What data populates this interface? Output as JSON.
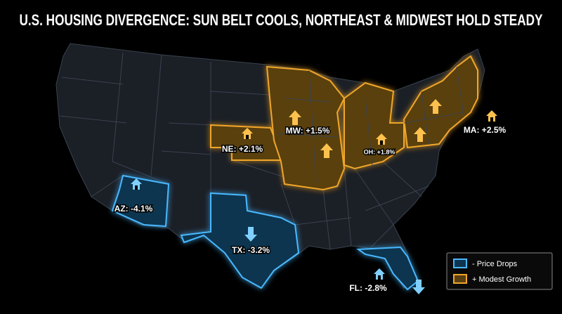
{
  "title": "U.S. HOUSING DIVERGENCE: SUN BELT COOLS, NORTHEAST & MIDWEST HOLD STEADY",
  "regions": [
    {
      "label": "AZ: -4.1%"
    },
    {
      "label": "TX: -3.2%"
    },
    {
      "label": "FL: -2.8%"
    },
    {
      "label": "NE: +2.1%"
    },
    {
      "label": "MW: +1.5%"
    },
    {
      "label": "OH: +1.8%"
    },
    {
      "label": "MA: +2.5%"
    }
  ],
  "legend": [
    {
      "label": "- Price Drops"
    },
    {
      "label": "+ Modest Growth"
    }
  ]
}
